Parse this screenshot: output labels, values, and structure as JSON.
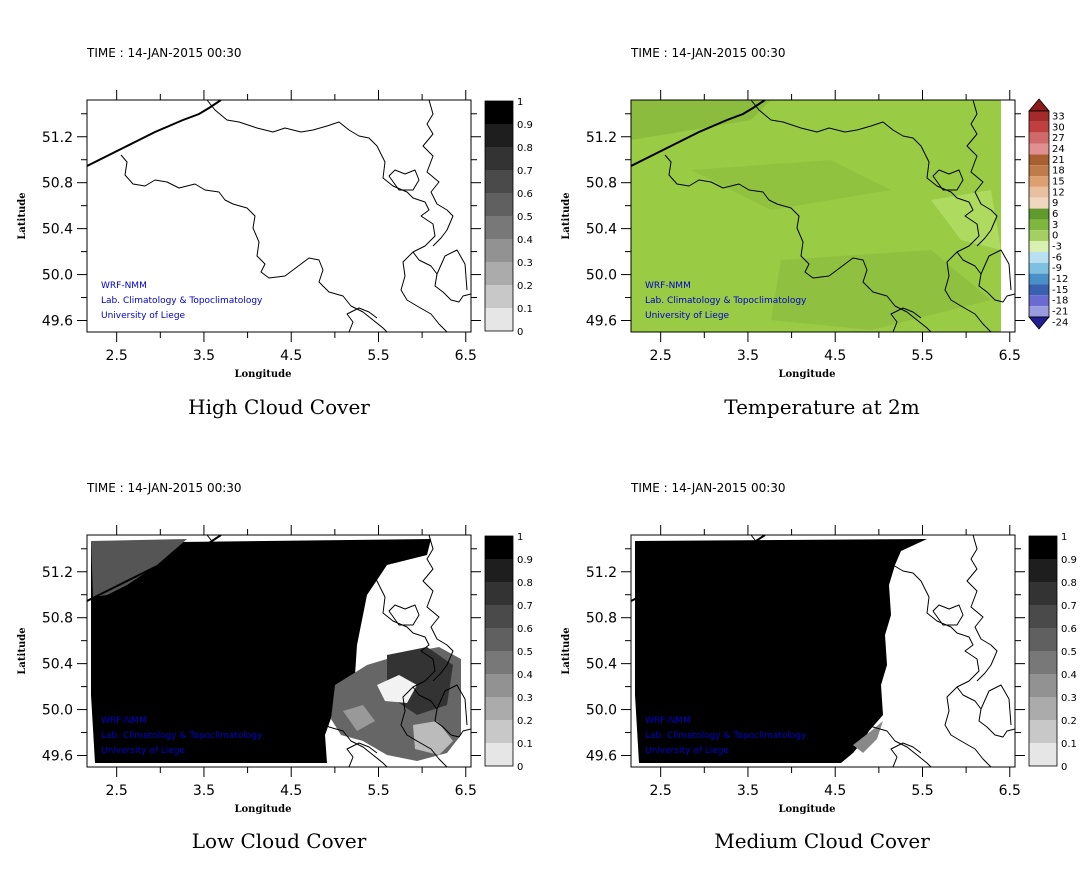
{
  "panels": [
    {
      "id": "high-cloud",
      "time_label": "TIME : 14-JAN-2015 00:30",
      "title": "High Cloud Cover",
      "xlabel": "Longitude",
      "ylabel": "Latitude",
      "x_ticks": [
        "2.5",
        "3.5",
        "4.5",
        "5.5",
        "6.5"
      ],
      "y_ticks": [
        "51.2",
        "50.8",
        "50.4",
        "50.0",
        "49.6"
      ],
      "colorbar": [
        "1",
        "0.9",
        "0.8",
        "0.7",
        "0.6",
        "0.5",
        "0.4",
        "0.3",
        "0.2",
        "0.1",
        "0"
      ],
      "field": "empty",
      "credits": [
        "WRF-NMM",
        "Lab. Climatology & Topoclimatology",
        "University of Liege"
      ]
    },
    {
      "id": "temperature-2m",
      "time_label": "TIME : 14-JAN-2015 00:30",
      "title": "Temperature at 2m",
      "xlabel": "Longitude",
      "ylabel": "Latitude",
      "x_ticks": [
        "2.5",
        "3.5",
        "4.5",
        "5.5",
        "6.5"
      ],
      "y_ticks": [
        "51.2",
        "50.8",
        "50.4",
        "50.0",
        "49.6"
      ],
      "colorbar": [
        "33",
        "30",
        "27",
        "24",
        "21",
        "18",
        "15",
        "12",
        "9",
        "6",
        "3",
        "0",
        "-3",
        "-6",
        "-9",
        "-12",
        "-15",
        "-18",
        "-21",
        "-24"
      ],
      "field": "temperature",
      "credits": [
        "WRF-NMM",
        "Lab. Climatology & Topoclimatology",
        "University of Liege"
      ]
    },
    {
      "id": "low-cloud",
      "time_label": "TIME : 14-JAN-2015 00:30",
      "title": "Low Cloud Cover",
      "xlabel": "Longitude",
      "ylabel": "Latitude",
      "x_ticks": [
        "2.5",
        "3.5",
        "4.5",
        "5.5",
        "6.5"
      ],
      "y_ticks": [
        "51.2",
        "50.8",
        "50.4",
        "50.0",
        "49.6"
      ],
      "colorbar": [
        "1",
        "0.9",
        "0.8",
        "0.7",
        "0.6",
        "0.5",
        "0.4",
        "0.3",
        "0.2",
        "0.1",
        "0"
      ],
      "field": "low-cloud",
      "credits": [
        "WRF-NMM",
        "Lab. Climatology & Topoclimatology",
        "University of Liege"
      ]
    },
    {
      "id": "medium-cloud",
      "time_label": "TIME : 14-JAN-2015 00:30",
      "title": "Medium Cloud Cover",
      "xlabel": "Longitude",
      "ylabel": "Latitude",
      "x_ticks": [
        "2.5",
        "3.5",
        "4.5",
        "5.5",
        "6.5"
      ],
      "y_ticks": [
        "51.2",
        "50.8",
        "50.4",
        "50.0",
        "49.6"
      ],
      "colorbar": [
        "1",
        "0.9",
        "0.8",
        "0.7",
        "0.6",
        "0.5",
        "0.4",
        "0.3",
        "0.2",
        "0.1",
        "0"
      ],
      "field": "medium-cloud",
      "credits": [
        "WRF-NMM",
        "Lab. Climatology & Topoclimatology",
        "University of Liege"
      ]
    }
  ],
  "colors": {
    "credit_text": "#0000cc",
    "temperature_field": "#99cc44",
    "temperature_field_dark": "#88b83c"
  }
}
